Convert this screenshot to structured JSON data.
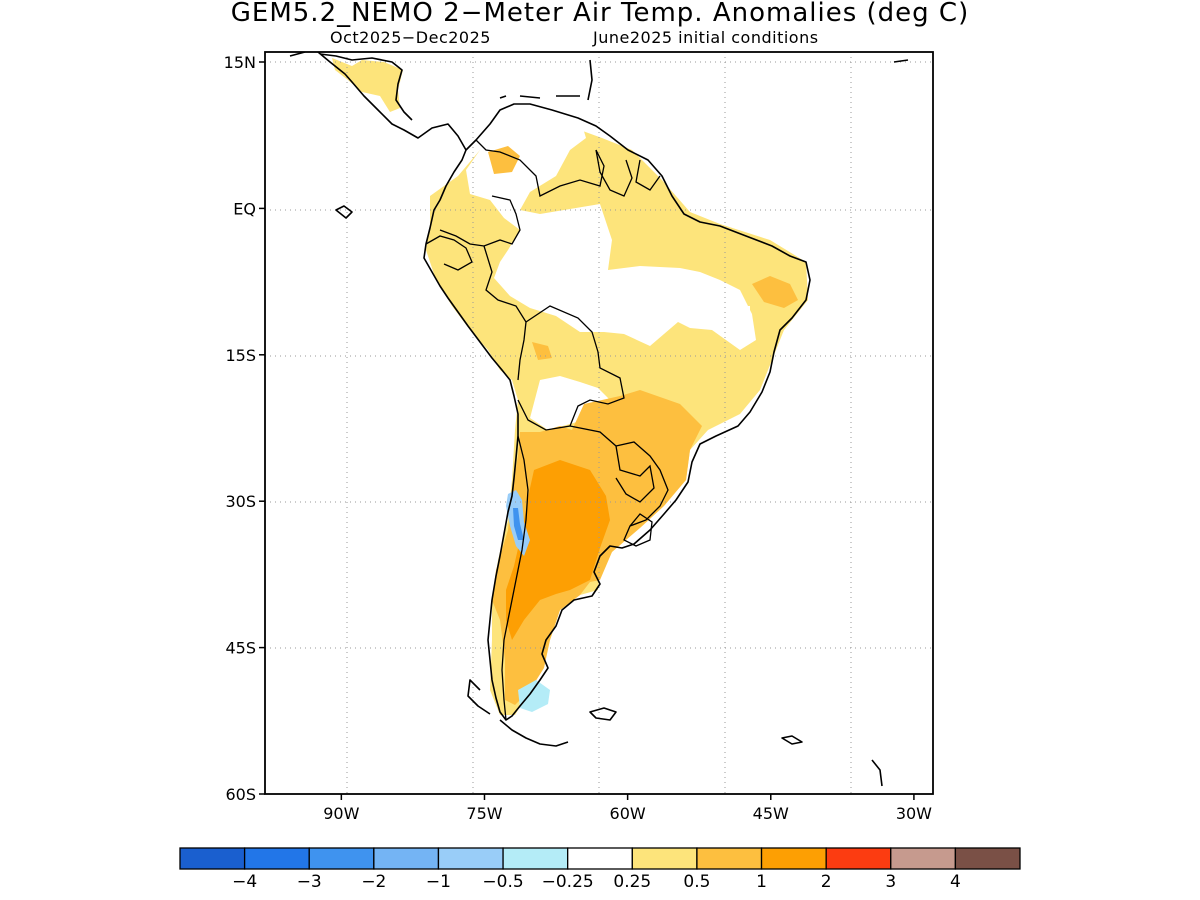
{
  "title": "GEM5.2_NEMO 2−Meter Air Temp. Anomalies (deg C)",
  "subtitle_period": "Oct2025−Dec2025",
  "subtitle_ic": "June2025 initial conditions",
  "map": {
    "lat_range": [
      -60,
      15
    ],
    "lon_range": [
      -98,
      -28
    ],
    "lat_ticks": [
      {
        "value": 15,
        "label": "15N"
      },
      {
        "value": 0,
        "label": "EQ"
      },
      {
        "value": -15,
        "label": "15S"
      },
      {
        "value": -30,
        "label": "30S"
      },
      {
        "value": -45,
        "label": "45S"
      },
      {
        "value": -60,
        "label": "60S"
      }
    ],
    "lon_ticks": [
      {
        "value": -90,
        "label": "90W"
      },
      {
        "value": -75,
        "label": "75W"
      },
      {
        "value": -60,
        "label": "60W"
      },
      {
        "value": -45,
        "label": "45W"
      },
      {
        "value": -30,
        "label": "30W"
      }
    ],
    "grid": "dotted"
  },
  "colorbar": {
    "colors": [
      "#1a5fcf",
      "#2276e8",
      "#3f93ef",
      "#74b4f4",
      "#99cdf8",
      "#b4ecf7",
      "#ffffff",
      "#fde47b",
      "#fdbf3f",
      "#fd9f03",
      "#fc3c11",
      "#c69a8e",
      "#7a5046"
    ],
    "labels": [
      "−4",
      "−3",
      "−2",
      "−1",
      "−0.5",
      "−0.25",
      "0.25",
      "0.5",
      "1",
      "2",
      "3",
      "4"
    ]
  },
  "palette": {
    "coast": "#000000",
    "border": "#000000",
    "grid": "#999999"
  }
}
